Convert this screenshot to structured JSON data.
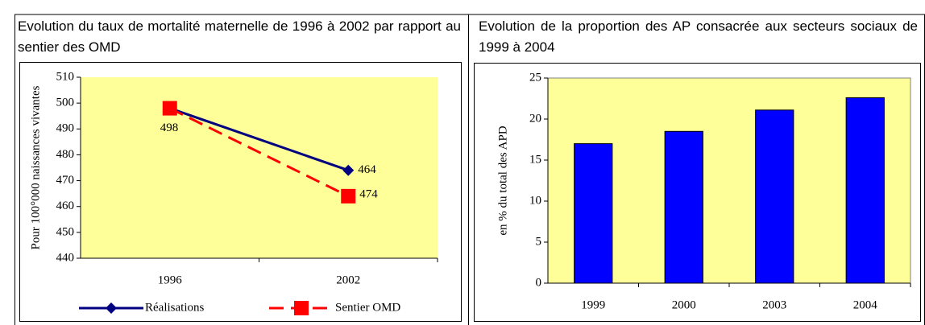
{
  "chart_data": [
    {
      "type": "line",
      "title": "Evolution du taux de mortalité maternelle de 1996 à 2002 par rapport au sentier des OMD",
      "ylabel": "Pour 100°000 naissances vivantes",
      "categories": [
        "1996",
        "2002"
      ],
      "series": [
        {
          "name": "Réalisations",
          "color": "#000080",
          "values": [
            498,
            474
          ],
          "value_labels": [
            "498",
            null
          ],
          "marker": "diamond",
          "dash": false
        },
        {
          "name": "Sentier OMD",
          "color": "#ff0000",
          "values": [
            498,
            464
          ],
          "value_labels": [
            null,
            "464"
          ],
          "marker": "square",
          "dash": true
        }
      ],
      "annotation": "474",
      "ylim": [
        440,
        510
      ],
      "yticks": [
        440,
        450,
        460,
        470,
        480,
        490,
        500,
        510
      ],
      "legend": "bottom",
      "background": "#ffff99"
    },
    {
      "type": "bar",
      "title": "Evolution de la proportion des AP consacrée aux secteurs sociaux de 1999 à 2004",
      "ylabel": "en % du total des APD",
      "categories": [
        "1999",
        "2000",
        "2003",
        "2004"
      ],
      "values": [
        17,
        18.5,
        21.1,
        22.6
      ],
      "color": "#0000ff",
      "ylim": [
        0,
        25
      ],
      "yticks": [
        0,
        5,
        10,
        15,
        20,
        25
      ],
      "background": "#ffff99"
    }
  ]
}
